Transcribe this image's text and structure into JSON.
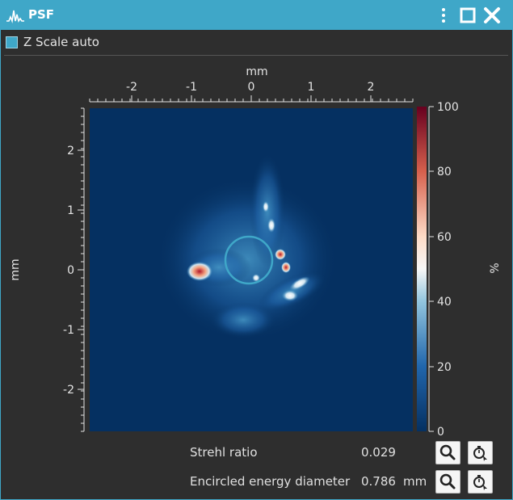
{
  "window": {
    "title": "PSF",
    "icons": {
      "app": "psf-icon",
      "menu": "vertical-dots-icon",
      "maximize": "maximize-icon",
      "close": "close-icon"
    },
    "accent_color": "#3fa7c8"
  },
  "zscale": {
    "label": "Z Scale auto",
    "checked": true
  },
  "plot": {
    "x_axis_label": "mm",
    "y_axis_label": "mm",
    "x_ticks": [
      "-2",
      "-1",
      "0",
      "1",
      "2"
    ],
    "y_ticks": [
      "2",
      "1",
      "0",
      "-1",
      "-2"
    ],
    "colorbar_label": "%",
    "colorbar_ticks": [
      "100",
      "80",
      "60",
      "40",
      "20",
      "0"
    ],
    "colorbar_colors": [
      "#67001f",
      "#d6604d",
      "#f7f7f7",
      "#92c5de",
      "#2166ac",
      "#053061"
    ]
  },
  "results": {
    "strehl": {
      "label": "Strehl ratio",
      "value": "0.029"
    },
    "encircled": {
      "label": "Encircled energy diameter",
      "value": "0.786",
      "unit": "mm"
    },
    "button_icons": {
      "zoom": "magnifier-icon",
      "pick": "stopwatch-pointer-icon"
    }
  }
}
